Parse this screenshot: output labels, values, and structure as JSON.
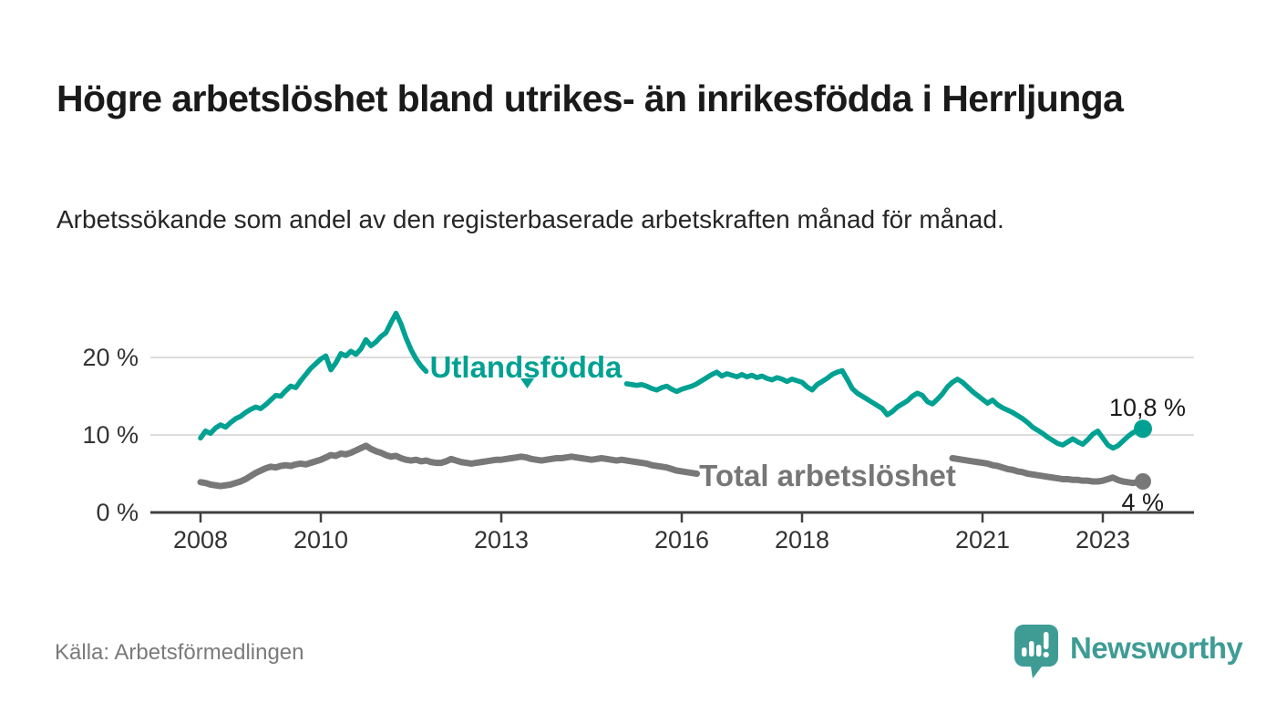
{
  "header": {
    "title": "Högre arbetslöshet bland utrikes- än inrikesfödda i Herrljunga",
    "subtitle": "Arbetssökande som andel av den registerbaserade arbetskraften månad för månad."
  },
  "chart_data": {
    "type": "line",
    "title": "Högre arbetslöshet bland utrikes- än inrikesfödda i Herrljunga",
    "subtitle": "Arbetssökande som andel av den registerbaserade arbetskraften månad för månad.",
    "x_unit": "month",
    "x_start": "2008-01",
    "x_end": "2023-09",
    "x_ticks": [
      2008,
      2010,
      2013,
      2016,
      2018,
      2021,
      2023
    ],
    "y_ticks": [
      "20 %",
      "10 %",
      "0 %"
    ],
    "y_tick_values": [
      20,
      10,
      0
    ],
    "ylim": [
      0,
      27
    ],
    "grid": "horizontal",
    "legend_position": "on-line-labels",
    "series": [
      {
        "name": "Utlandsfödda",
        "color": "#00a192",
        "end_label": "10,8 %",
        "end_value": 10.8,
        "values": [
          9.6,
          10.5,
          10.2,
          10.9,
          11.3,
          11.0,
          11.6,
          12.1,
          12.4,
          12.9,
          13.3,
          13.6,
          13.4,
          13.9,
          14.5,
          15.1,
          15.0,
          15.7,
          16.3,
          16.1,
          17.0,
          17.8,
          18.6,
          19.2,
          19.8,
          20.2,
          18.4,
          19.3,
          20.5,
          20.2,
          20.8,
          20.4,
          21.1,
          22.3,
          21.5,
          22.0,
          22.7,
          23.2,
          24.5,
          25.7,
          24.3,
          22.5,
          21.0,
          19.8,
          18.9,
          18.2,
          17.8,
          17.5,
          17.3,
          17.1,
          17.0,
          16.9,
          16.8,
          16.9,
          17.0,
          16.8,
          16.7,
          16.8,
          16.9,
          17.0,
          16.9,
          16.8,
          16.9,
          17.0,
          16.9,
          16.8,
          16.9,
          17.0,
          17.1,
          17.0,
          16.9,
          16.8,
          16.7,
          16.8,
          16.9,
          16.8,
          16.7,
          16.8,
          16.9,
          17.0,
          16.9,
          16.8,
          16.7,
          16.6,
          16.7,
          16.6,
          16.5,
          16.4,
          16.5,
          16.3,
          16.0,
          15.8,
          16.1,
          16.3,
          15.9,
          15.6,
          15.9,
          16.1,
          16.3,
          16.6,
          17.0,
          17.4,
          17.8,
          18.1,
          17.6,
          17.9,
          17.7,
          17.5,
          17.8,
          17.5,
          17.7,
          17.4,
          17.6,
          17.3,
          17.1,
          17.4,
          17.2,
          16.9,
          17.2,
          17.0,
          16.8,
          16.2,
          15.8,
          16.5,
          16.9,
          17.3,
          17.8,
          18.1,
          18.3,
          17.2,
          16.0,
          15.4,
          15.0,
          14.6,
          14.2,
          13.8,
          13.4,
          12.6,
          13.0,
          13.6,
          14.0,
          14.4,
          15.0,
          15.4,
          15.1,
          14.3,
          14.0,
          14.6,
          15.3,
          16.2,
          16.8,
          17.2,
          16.8,
          16.2,
          15.6,
          15.1,
          14.6,
          14.1,
          14.5,
          13.9,
          13.5,
          13.2,
          12.9,
          12.5,
          12.1,
          11.6,
          11.0,
          10.6,
          10.2,
          9.7,
          9.3,
          8.9,
          8.7,
          9.1,
          9.5,
          9.1,
          8.8,
          9.4,
          10.1,
          10.5,
          9.6,
          8.7,
          8.3,
          8.6,
          9.2,
          9.8,
          10.3,
          10.6,
          10.8
        ]
      },
      {
        "name": "Total arbetslöshet",
        "color": "#787878",
        "end_label": "4 %",
        "end_value": 4.0,
        "values": [
          3.9,
          3.8,
          3.6,
          3.5,
          3.4,
          3.5,
          3.6,
          3.8,
          4.0,
          4.3,
          4.7,
          5.1,
          5.4,
          5.7,
          5.9,
          5.8,
          6.0,
          6.1,
          6.0,
          6.2,
          6.3,
          6.2,
          6.4,
          6.6,
          6.8,
          7.1,
          7.4,
          7.3,
          7.6,
          7.5,
          7.7,
          8.0,
          8.3,
          8.6,
          8.2,
          7.9,
          7.7,
          7.4,
          7.2,
          7.3,
          7.0,
          6.8,
          6.7,
          6.8,
          6.6,
          6.7,
          6.5,
          6.4,
          6.4,
          6.6,
          6.9,
          6.7,
          6.5,
          6.4,
          6.3,
          6.4,
          6.5,
          6.6,
          6.7,
          6.8,
          6.8,
          6.9,
          7.0,
          7.1,
          7.2,
          7.1,
          6.9,
          6.8,
          6.7,
          6.8,
          6.9,
          7.0,
          7.0,
          7.1,
          7.2,
          7.1,
          7.0,
          6.9,
          6.8,
          6.9,
          7.0,
          6.9,
          6.8,
          6.7,
          6.8,
          6.7,
          6.6,
          6.5,
          6.4,
          6.3,
          6.1,
          6.0,
          5.9,
          5.8,
          5.6,
          5.4,
          5.3,
          5.2,
          5.1,
          5.0,
          4.9,
          5.0,
          5.1,
          5.2,
          5.3,
          5.4,
          5.5,
          5.6,
          5.7,
          5.8,
          5.9,
          6.0,
          6.1,
          6.0,
          5.9,
          6.0,
          6.1,
          6.2,
          6.3,
          6.2,
          6.1,
          6.0,
          5.9,
          5.8,
          5.7,
          5.8,
          5.9,
          6.0,
          6.1,
          6.0,
          5.9,
          6.0,
          6.1,
          6.2,
          6.3,
          6.4,
          6.5,
          6.6,
          6.5,
          6.6,
          6.7,
          6.8,
          6.9,
          7.0,
          7.1,
          7.2,
          7.4,
          7.6,
          7.5,
          7.3,
          7.0,
          6.9,
          6.8,
          6.7,
          6.6,
          6.5,
          6.4,
          6.3,
          6.1,
          6.0,
          5.8,
          5.6,
          5.5,
          5.3,
          5.2,
          5.0,
          4.9,
          4.8,
          4.7,
          4.6,
          4.5,
          4.4,
          4.3,
          4.3,
          4.2,
          4.2,
          4.1,
          4.1,
          4.0,
          4.0,
          4.1,
          4.3,
          4.5,
          4.2,
          4.0,
          3.9,
          3.8,
          3.9,
          4.0
        ]
      }
    ]
  },
  "footer": {
    "source": "Källa: Arbetsförmedlingen",
    "brand": "Newsworthy"
  },
  "colors": {
    "series_teal": "#00a192",
    "series_gray": "#787878",
    "brand_teal": "#3e9c95",
    "grid": "#dcdcdc",
    "axis": "#404040",
    "title_text": "#1a1a1a",
    "muted_text": "#7a7a7a"
  }
}
